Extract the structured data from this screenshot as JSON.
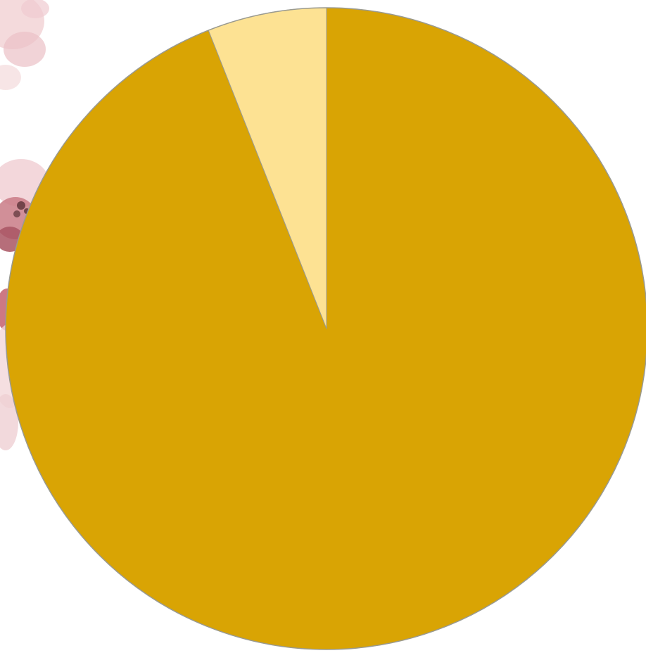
{
  "chart_data": {
    "type": "pie",
    "slices": [
      {
        "value": 94,
        "color": "#D9A404"
      },
      {
        "value": 6,
        "color": "#FDE293"
      }
    ],
    "start_angle_deg": 0,
    "direction": "clockwise",
    "legend": "none"
  },
  "colors": {
    "slice_border": "#9A9A90",
    "background": "#FFFFFF",
    "floral_decor": "#B8606E"
  },
  "decor": {
    "icon": "watercolor-floral-decoration-icon"
  }
}
